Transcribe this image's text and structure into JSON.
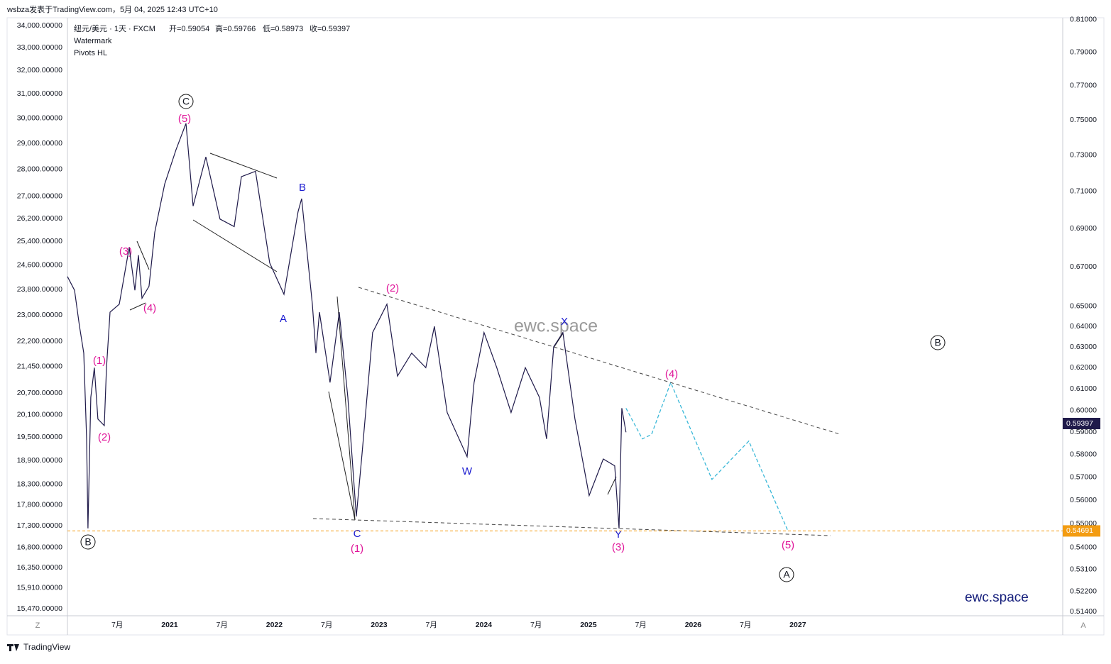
{
  "header": {
    "byline": "wsbza发表于TradingView.com，5月 04, 2025 12:43 UTC+10"
  },
  "legend": {
    "symbol": "纽元/美元 · 1天 · FXCM",
    "open": "开=0.59054",
    "high": "高=0.59766",
    "low": "低=0.58973",
    "close": "收=0.59397",
    "indicators": [
      "Watermark",
      "Pivots HL"
    ]
  },
  "watermark": "ewc.space",
  "brand": "ewc.space",
  "footer": "TradingView",
  "corner_left": "Z",
  "corner_right": "A",
  "annotations": [
    "(1)",
    "(2)",
    "(3)",
    "(4)",
    "(5)",
    "C",
    "B",
    "B",
    "A",
    "(2)",
    "C",
    "(1)",
    "W",
    "X",
    "Y",
    "(3)",
    "(4)",
    "(5)",
    "B",
    "A"
  ],
  "chart_data": {
    "type": "line",
    "log_scale": true,
    "grid": false,
    "xlim": [
      2020.024,
      2029.53
    ],
    "xticks": [
      {
        "value": 2020.5,
        "label": "7月"
      },
      2021,
      {
        "value": 2021.5,
        "label": "7月"
      },
      2022,
      {
        "value": 2022.5,
        "label": "7月"
      },
      2023,
      {
        "value": 2023.5,
        "label": "7月"
      },
      2024,
      {
        "value": 2024.5,
        "label": "7月"
      },
      2025,
      {
        "value": 2025.5,
        "label": "7月"
      },
      2026,
      {
        "value": 2026.5,
        "label": "7月"
      },
      2027
    ],
    "ylim": [
      15323,
      34360
    ],
    "yticks": [
      {
        "value": 34000,
        "label": "34,000.00000"
      },
      {
        "value": 33000,
        "label": "33,000.00000"
      },
      {
        "value": 32000,
        "label": "32,000.00000"
      },
      {
        "value": 31000,
        "label": "31,000.00000"
      },
      {
        "value": 30000,
        "label": "30,000.00000"
      },
      {
        "value": 29000,
        "label": "29,000.00000"
      },
      {
        "value": 28000,
        "label": "28,000.00000"
      },
      {
        "value": 27000,
        "label": "27,000.00000"
      },
      {
        "value": 26200,
        "label": "26,200.00000"
      },
      {
        "value": 25400,
        "label": "25,400.00000"
      },
      {
        "value": 24600,
        "label": "24,600.00000"
      },
      {
        "value": 23800,
        "label": "23,800.00000"
      },
      {
        "value": 23000,
        "label": "23,000.00000"
      },
      {
        "value": 22200,
        "label": "22,200.00000"
      },
      {
        "value": 21450,
        "label": "21,450.00000"
      },
      {
        "value": 20700,
        "label": "20,700.00000"
      },
      {
        "value": 20100,
        "label": "20,100.00000"
      },
      {
        "value": 19500,
        "label": "19,500.00000"
      },
      {
        "value": 18900,
        "label": "18,900.00000"
      },
      {
        "value": 18300,
        "label": "18,300.00000"
      },
      {
        "value": 17800,
        "label": "17,800.00000"
      },
      {
        "value": 17300,
        "label": "17,300.00000"
      },
      {
        "value": 16800,
        "label": "16,800.00000"
      },
      {
        "value": 16350,
        "label": "16,350.00000"
      },
      {
        "value": 15910,
        "label": "15,910.00000"
      },
      {
        "value": 15470,
        "label": "15,470.00000"
      }
    ],
    "y2lim": [
      0.5124,
      0.8113
    ],
    "y2ticks": [
      {
        "value": 0.81,
        "label": "0.81000"
      },
      {
        "value": 0.79,
        "label": "0.79000"
      },
      {
        "value": 0.77,
        "label": "0.77000"
      },
      {
        "value": 0.75,
        "label": "0.75000"
      },
      {
        "value": 0.73,
        "label": "0.73000"
      },
      {
        "value": 0.71,
        "label": "0.71000"
      },
      {
        "value": 0.69,
        "label": "0.69000"
      },
      {
        "value": 0.67,
        "label": "0.67000"
      },
      {
        "value": 0.65,
        "label": "0.65000"
      },
      {
        "value": 0.64,
        "label": "0.64000"
      },
      {
        "value": 0.63,
        "label": "0.63000"
      },
      {
        "value": 0.62,
        "label": "0.62000"
      },
      {
        "value": 0.61,
        "label": "0.61000"
      },
      {
        "value": 0.6,
        "label": "0.60000"
      },
      {
        "value": 0.59,
        "label": "0.59000"
      },
      {
        "value": 0.58,
        "label": "0.58000"
      },
      {
        "value": 0.57,
        "label": "0.57000"
      },
      {
        "value": 0.56,
        "label": "0.56000"
      },
      {
        "value": 0.55,
        "label": "0.55000"
      },
      {
        "value": 0.54,
        "label": "0.54000"
      },
      {
        "value": 0.531,
        "label": "0.53100"
      },
      {
        "value": 0.522,
        "label": "0.52200"
      },
      {
        "value": 0.514,
        "label": "0.51400"
      }
    ],
    "last_price": 0.59397,
    "level_price": 0.54691,
    "series": [
      {
        "name": "NZDUSD",
        "color": "#1f1a4a",
        "axis": "y2",
        "x": [
          2020.024,
          2020.092,
          2020.139,
          2020.18,
          2020.207,
          2020.22,
          2020.247,
          2020.281,
          2020.315,
          2020.376,
          2020.397,
          2020.431,
          2020.519,
          2020.614,
          2020.668,
          2020.702,
          2020.736,
          2020.803,
          2020.858,
          2020.953,
          2021.061,
          2021.156,
          2021.224,
          2021.346,
          2021.481,
          2021.617,
          2021.685,
          2021.82,
          2021.956,
          2022.092,
          2022.227,
          2022.261,
          2022.363,
          2022.397,
          2022.431,
          2022.532,
          2022.62,
          2022.702,
          2022.783,
          2022.837,
          2022.939,
          2023.075,
          2023.176,
          2023.312,
          2023.447,
          2023.529,
          2023.651,
          2023.841,
          2023.908,
          2024.003,
          2024.125,
          2024.261,
          2024.397,
          2024.532,
          2024.6,
          2024.668,
          2024.756,
          2024.871,
          2025.007,
          2025.142,
          2025.251,
          2025.292,
          2025.319,
          2025.359
        ],
        "values": [
          0.665,
          0.658,
          0.64,
          0.627,
          0.587,
          0.548,
          0.606,
          0.62,
          0.596,
          0.593,
          0.62,
          0.647,
          0.651,
          0.68,
          0.658,
          0.676,
          0.654,
          0.66,
          0.688,
          0.714,
          0.733,
          0.748,
          0.702,
          0.729,
          0.695,
          0.691,
          0.718,
          0.721,
          0.672,
          0.656,
          0.699,
          0.706,
          0.651,
          0.627,
          0.647,
          0.613,
          0.647,
          0.606,
          0.553,
          0.58,
          0.637,
          0.651,
          0.616,
          0.627,
          0.62,
          0.64,
          0.599,
          0.579,
          0.613,
          0.637,
          0.62,
          0.599,
          0.62,
          0.606,
          0.587,
          0.63,
          0.637,
          0.596,
          0.562,
          0.578,
          0.575,
          0.548,
          0.601,
          0.59
        ]
      },
      {
        "name": "Projection",
        "color": "#3ab8d8",
        "axis": "y2",
        "x": [
          2025.359,
          2025.515,
          2025.603,
          2025.786,
          2026.18,
          2026.532,
          2026.905
        ],
        "values": [
          0.601,
          0.587,
          0.589,
          0.613,
          0.569,
          0.586,
          0.547
        ]
      }
    ]
  }
}
